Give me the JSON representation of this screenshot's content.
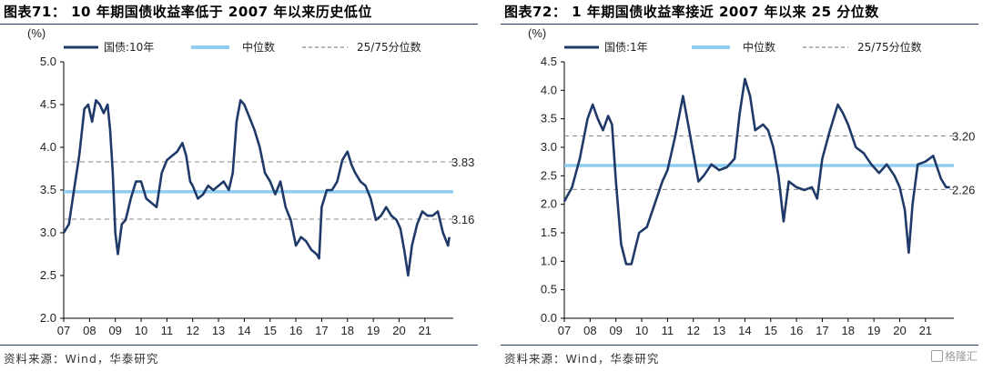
{
  "colors": {
    "main": "#1f3a68",
    "median": "#8fcdf0",
    "band": "#8a8a8a",
    "axis": "#000000"
  },
  "watermark": "格隆汇",
  "charts": [
    {
      "title": "图表71： 10 年期国债收益率低于 2007 年以来历史低位",
      "source": "资料来源：Wind，华泰研究",
      "chart_data": {
        "type": "line",
        "ylabel": "(%)",
        "ylim": [
          2.0,
          5.0
        ],
        "yticks": [
          2.0,
          2.5,
          3.0,
          3.5,
          4.0,
          4.5,
          5.0
        ],
        "ytick_labels": [
          "2.0",
          "2.5",
          "3.0",
          "3.5",
          "4.0",
          "4.5",
          "5.0"
        ],
        "x_range": [
          2007.0,
          2022.1
        ],
        "xticks": [
          "07",
          "08",
          "09",
          "10",
          "11",
          "12",
          "13",
          "14",
          "15",
          "16",
          "17",
          "18",
          "19",
          "20",
          "21"
        ],
        "grid": false,
        "legend_position": "top",
        "legend": [
          "国债:10年",
          "中位数",
          "25/75分位数"
        ],
        "series": [
          {
            "name": "国债:10年",
            "x": [
              2007.0,
              2007.2,
              2007.4,
              2007.6,
              2007.8,
              2007.95,
              2008.1,
              2008.25,
              2008.4,
              2008.55,
              2008.7,
              2008.8,
              2008.9,
              2009.0,
              2009.1,
              2009.25,
              2009.4,
              2009.6,
              2009.8,
              2010.0,
              2010.2,
              2010.4,
              2010.6,
              2010.8,
              2011.0,
              2011.2,
              2011.4,
              2011.6,
              2011.75,
              2011.9,
              2012.0,
              2012.2,
              2012.4,
              2012.6,
              2012.8,
              2013.0,
              2013.2,
              2013.4,
              2013.55,
              2013.7,
              2013.85,
              2014.0,
              2014.2,
              2014.4,
              2014.6,
              2014.8,
              2015.0,
              2015.2,
              2015.4,
              2015.6,
              2015.8,
              2016.0,
              2016.2,
              2016.4,
              2016.6,
              2016.8,
              2016.9,
              2017.0,
              2017.2,
              2017.4,
              2017.6,
              2017.8,
              2018.0,
              2018.15,
              2018.3,
              2018.5,
              2018.7,
              2018.9,
              2019.1,
              2019.3,
              2019.5,
              2019.7,
              2019.9,
              2020.05,
              2020.2,
              2020.35,
              2020.5,
              2020.7,
              2020.9,
              2021.1,
              2021.3,
              2021.5,
              2021.7,
              2021.9,
              2021.95
            ],
            "values": [
              3.0,
              3.1,
              3.5,
              3.9,
              4.45,
              4.5,
              4.3,
              4.55,
              4.5,
              4.4,
              4.5,
              4.2,
              3.7,
              3.0,
              2.75,
              3.1,
              3.15,
              3.4,
              3.6,
              3.6,
              3.4,
              3.35,
              3.3,
              3.7,
              3.85,
              3.9,
              3.95,
              4.05,
              3.9,
              3.6,
              3.55,
              3.4,
              3.45,
              3.55,
              3.5,
              3.55,
              3.6,
              3.5,
              3.7,
              4.3,
              4.55,
              4.5,
              4.35,
              4.2,
              4.0,
              3.7,
              3.6,
              3.45,
              3.6,
              3.3,
              3.15,
              2.85,
              2.95,
              2.9,
              2.8,
              2.75,
              2.7,
              3.3,
              3.5,
              3.5,
              3.6,
              3.85,
              3.95,
              3.8,
              3.7,
              3.6,
              3.55,
              3.4,
              3.15,
              3.2,
              3.3,
              3.2,
              3.15,
              3.05,
              2.8,
              2.5,
              2.85,
              3.1,
              3.25,
              3.2,
              3.2,
              3.25,
              3.0,
              2.85,
              2.95
            ]
          },
          {
            "name": "中位数",
            "value": 3.48
          },
          {
            "name": "25/75分位数",
            "values": [
              3.16,
              3.83
            ]
          }
        ],
        "annotations": [
          "3.83",
          "3.16"
        ]
      }
    },
    {
      "title": "图表72： 1 年期国债收益率接近 2007 年以来 25 分位数",
      "source": "资料来源：Wind，华泰研究",
      "chart_data": {
        "type": "line",
        "ylabel": "(%)",
        "ylim": [
          0.0,
          4.5
        ],
        "yticks": [
          0.0,
          0.5,
          1.0,
          1.5,
          2.0,
          2.5,
          3.0,
          3.5,
          4.0,
          4.5
        ],
        "ytick_labels": [
          "0.0",
          "0.5",
          "1.0",
          "1.5",
          "2.0",
          "2.5",
          "3.0",
          "3.5",
          "4.0",
          "4.5"
        ],
        "x_range": [
          2007.0,
          2022.1
        ],
        "xticks": [
          "07",
          "08",
          "09",
          "10",
          "11",
          "12",
          "13",
          "14",
          "15",
          "16",
          "17",
          "18",
          "19",
          "20",
          "21"
        ],
        "grid": false,
        "legend_position": "top",
        "legend": [
          "国债:1年",
          "中位数",
          "25/75分位数"
        ],
        "series": [
          {
            "name": "国债:1年",
            "x": [
              2007.0,
              2007.3,
              2007.6,
              2007.9,
              2008.1,
              2008.3,
              2008.5,
              2008.7,
              2008.85,
              2009.0,
              2009.2,
              2009.4,
              2009.6,
              2009.9,
              2010.2,
              2010.5,
              2010.8,
              2011.0,
              2011.3,
              2011.6,
              2011.8,
              2012.0,
              2012.2,
              2012.4,
              2012.7,
              2013.0,
              2013.3,
              2013.6,
              2013.8,
              2014.0,
              2014.2,
              2014.4,
              2014.7,
              2014.9,
              2015.1,
              2015.3,
              2015.5,
              2015.7,
              2016.0,
              2016.3,
              2016.6,
              2016.8,
              2017.0,
              2017.3,
              2017.6,
              2017.8,
              2018.0,
              2018.3,
              2018.6,
              2018.9,
              2019.2,
              2019.5,
              2019.8,
              2020.0,
              2020.2,
              2020.35,
              2020.5,
              2020.7,
              2021.0,
              2021.3,
              2021.6,
              2021.8,
              2021.95
            ],
            "values": [
              2.05,
              2.3,
              2.8,
              3.5,
              3.75,
              3.5,
              3.3,
              3.55,
              3.4,
              2.4,
              1.3,
              0.95,
              0.95,
              1.5,
              1.6,
              2.0,
              2.4,
              2.6,
              3.2,
              3.9,
              3.4,
              2.9,
              2.4,
              2.5,
              2.7,
              2.6,
              2.65,
              2.8,
              3.6,
              4.2,
              3.9,
              3.3,
              3.4,
              3.3,
              3.0,
              2.5,
              1.7,
              2.4,
              2.3,
              2.25,
              2.3,
              2.1,
              2.8,
              3.3,
              3.75,
              3.6,
              3.4,
              3.0,
              2.9,
              2.7,
              2.55,
              2.7,
              2.5,
              2.3,
              1.9,
              1.15,
              2.0,
              2.7,
              2.75,
              2.85,
              2.45,
              2.3,
              2.3
            ]
          },
          {
            "name": "中位数",
            "value": 2.68
          },
          {
            "name": "25/75分位数",
            "values": [
              2.26,
              3.2
            ]
          }
        ],
        "annotations": [
          "3.20",
          "2.26"
        ]
      }
    }
  ]
}
